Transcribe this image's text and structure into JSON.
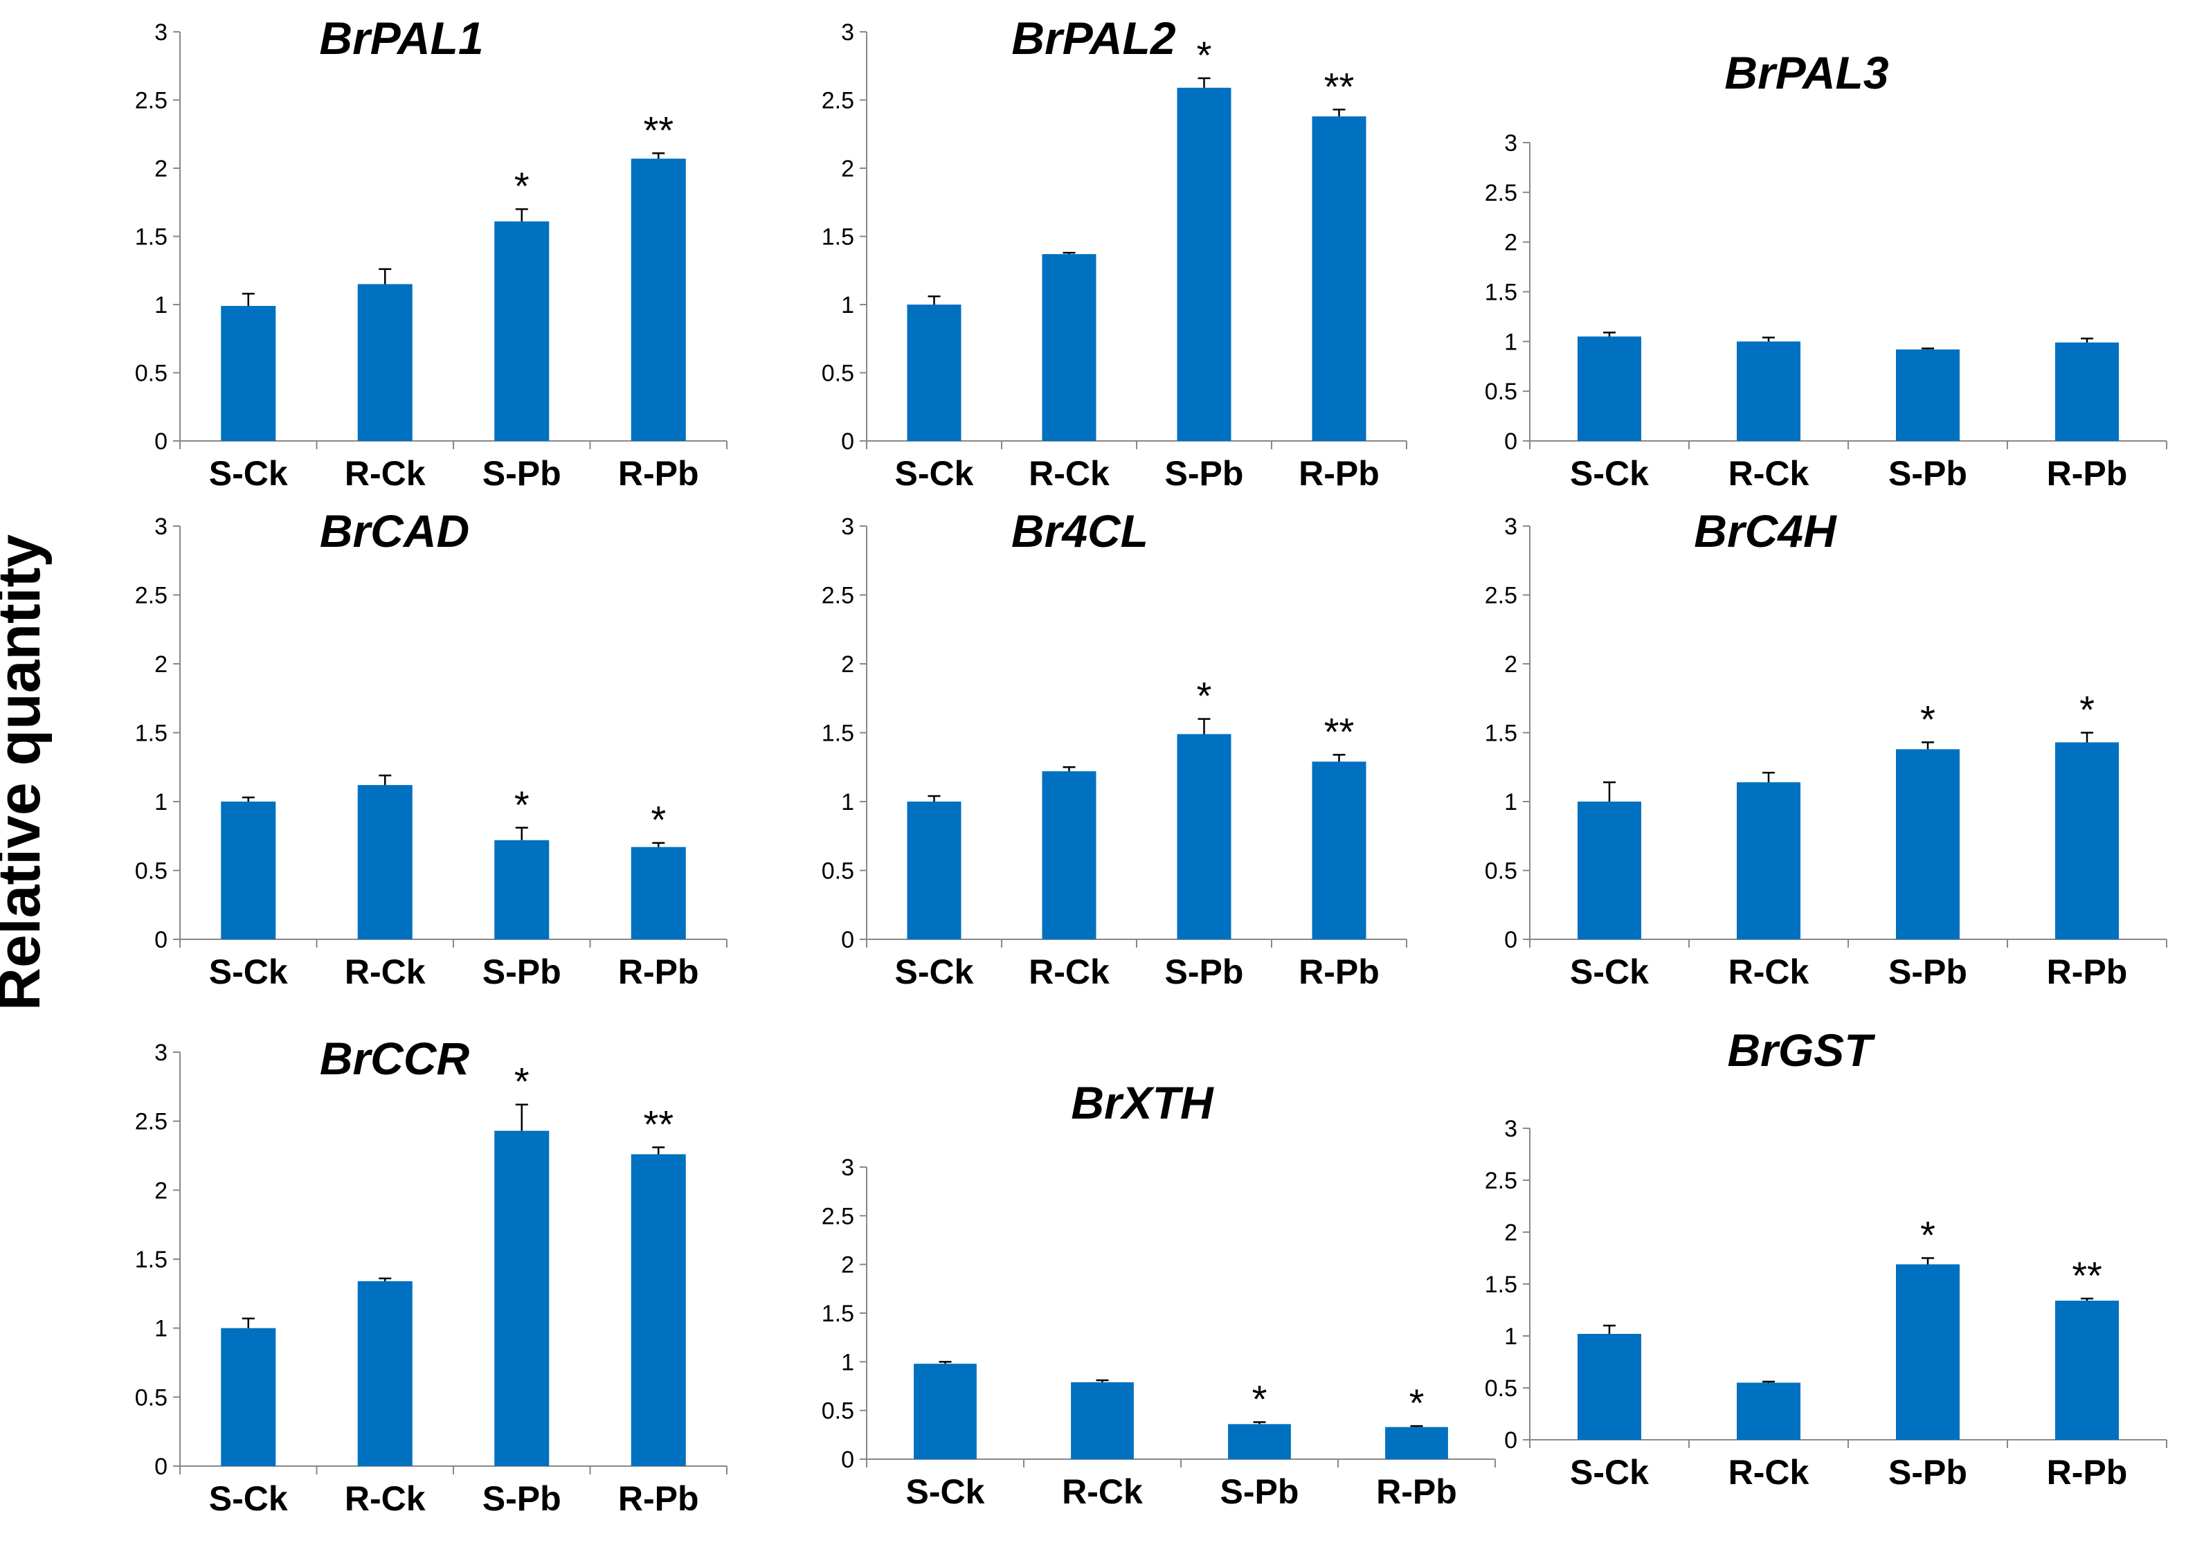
{
  "figure": {
    "ylabel": "Relative quantity"
  },
  "chart_data": [
    {
      "type": "bar",
      "title": "BrPAL1",
      "categories": [
        "S-Ck",
        "R-Ck",
        "S-Pb",
        "R-Pb"
      ],
      "values": [
        0.99,
        1.15,
        1.61,
        2.07
      ],
      "errors": [
        0.09,
        0.11,
        0.09,
        0.04
      ],
      "significance": [
        "",
        "",
        "*",
        "**"
      ],
      "ylim": [
        0,
        3
      ],
      "yticks": [
        0,
        0.5,
        1,
        1.5,
        2,
        2.5,
        3
      ],
      "xlabel": "",
      "ylabel": "Relative quantity",
      "bar_color": "#0070C0"
    },
    {
      "type": "bar",
      "title": "BrPAL2",
      "categories": [
        "S-Ck",
        "R-Ck",
        "S-Pb",
        "R-Pb"
      ],
      "values": [
        1.0,
        1.37,
        2.59,
        2.38
      ],
      "errors": [
        0.06,
        0.01,
        0.07,
        0.05
      ],
      "significance": [
        "",
        "",
        "*",
        "**"
      ],
      "ylim": [
        0,
        3
      ],
      "yticks": [
        0,
        0.5,
        1,
        1.5,
        2,
        2.5,
        3
      ],
      "xlabel": "",
      "ylabel": "Relative quantity",
      "bar_color": "#0070C0"
    },
    {
      "type": "bar",
      "title": "BrPAL3",
      "categories": [
        "S-Ck",
        "R-Ck",
        "S-Pb",
        "R-Pb"
      ],
      "values": [
        1.05,
        1.0,
        0.92,
        0.99
      ],
      "errors": [
        0.04,
        0.04,
        0.01,
        0.04
      ],
      "significance": [
        "",
        "",
        "",
        ""
      ],
      "ylim": [
        0,
        3
      ],
      "yticks": [
        0,
        0.5,
        1,
        1.5,
        2,
        2.5,
        3
      ],
      "xlabel": "",
      "ylabel": "Relative quantity",
      "bar_color": "#0070C0"
    },
    {
      "type": "bar",
      "title": "BrCAD",
      "categories": [
        "S-Ck",
        "R-Ck",
        "S-Pb",
        "R-Pb"
      ],
      "values": [
        1.0,
        1.12,
        0.72,
        0.67
      ],
      "errors": [
        0.03,
        0.07,
        0.09,
        0.03
      ],
      "significance": [
        "",
        "",
        "*",
        "*"
      ],
      "ylim": [
        0,
        3
      ],
      "yticks": [
        0,
        0.5,
        1,
        1.5,
        2,
        2.5,
        3
      ],
      "xlabel": "",
      "ylabel": "Relative quantity",
      "bar_color": "#0070C0"
    },
    {
      "type": "bar",
      "title": "Br4CL",
      "categories": [
        "S-Ck",
        "R-Ck",
        "S-Pb",
        "R-Pb"
      ],
      "values": [
        1.0,
        1.22,
        1.49,
        1.29
      ],
      "errors": [
        0.04,
        0.03,
        0.11,
        0.05
      ],
      "significance": [
        "",
        "",
        "*",
        "**"
      ],
      "ylim": [
        0,
        3
      ],
      "yticks": [
        0,
        0.5,
        1,
        1.5,
        2,
        2.5,
        3
      ],
      "xlabel": "",
      "ylabel": "Relative quantity",
      "bar_color": "#0070C0"
    },
    {
      "type": "bar",
      "title": "BrC4H",
      "categories": [
        "S-Ck",
        "R-Ck",
        "S-Pb",
        "R-Pb"
      ],
      "values": [
        1.0,
        1.14,
        1.38,
        1.43
      ],
      "errors": [
        0.14,
        0.07,
        0.05,
        0.07
      ],
      "significance": [
        "",
        "",
        "*",
        "*"
      ],
      "ylim": [
        0,
        3
      ],
      "yticks": [
        0,
        0.5,
        1,
        1.5,
        2,
        2.5,
        3
      ],
      "xlabel": "",
      "ylabel": "Relative quantity",
      "bar_color": "#0070C0"
    },
    {
      "type": "bar",
      "title": "BrCCR",
      "categories": [
        "S-Ck",
        "R-Ck",
        "S-Pb",
        "R-Pb"
      ],
      "values": [
        1.0,
        1.34,
        2.43,
        2.26
      ],
      "errors": [
        0.07,
        0.02,
        0.19,
        0.05
      ],
      "significance": [
        "",
        "",
        "*",
        "**"
      ],
      "ylim": [
        0,
        3
      ],
      "yticks": [
        0,
        0.5,
        1,
        1.5,
        2,
        2.5,
        3
      ],
      "xlabel": "",
      "ylabel": "Relative quantity",
      "bar_color": "#0070C0"
    },
    {
      "type": "bar",
      "title": "BrXTH",
      "categories": [
        "S-Ck",
        "R-Ck",
        "S-Pb",
        "R-Pb"
      ],
      "values": [
        0.98,
        0.79,
        0.36,
        0.33
      ],
      "errors": [
        0.02,
        0.02,
        0.02,
        0.01
      ],
      "significance": [
        "",
        "",
        "*",
        "*"
      ],
      "ylim": [
        0,
        3
      ],
      "yticks": [
        0,
        0.5,
        1,
        1.5,
        2,
        2.5,
        3
      ],
      "xlabel": "",
      "ylabel": "Relative quantity",
      "bar_color": "#0070C0"
    },
    {
      "type": "bar",
      "title": "BrGST",
      "categories": [
        "S-Ck",
        "R-Ck",
        "S-Pb",
        "R-Pb"
      ],
      "values": [
        1.02,
        0.55,
        1.69,
        1.34
      ],
      "errors": [
        0.08,
        0.01,
        0.06,
        0.02
      ],
      "significance": [
        "",
        "",
        "*",
        "**"
      ],
      "ylim": [
        0,
        3
      ],
      "yticks": [
        0,
        0.5,
        1,
        1.5,
        2,
        2.5,
        3
      ],
      "xlabel": "",
      "ylabel": "Relative quantity",
      "bar_color": "#0070C0"
    }
  ]
}
